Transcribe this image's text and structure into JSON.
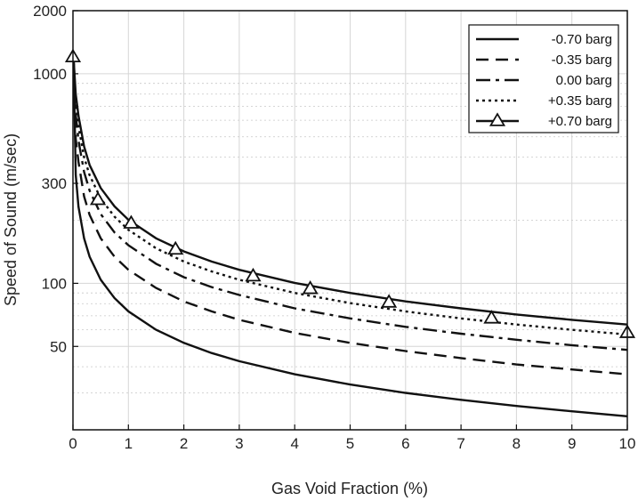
{
  "chart_data": {
    "type": "line",
    "title": "",
    "xlabel": "Gas Void Fraction (%)",
    "ylabel": "Speed of Sound (m/sec)",
    "xlim": [
      0,
      10
    ],
    "ylim": [
      20,
      2000
    ],
    "yscale": "log",
    "grid": true,
    "legend_position": "top-right",
    "x_ticks": [
      0,
      1,
      2,
      3,
      4,
      5,
      6,
      7,
      8,
      9,
      10
    ],
    "x_tick_labels": [
      "0",
      "1",
      "2",
      "3",
      "4",
      "5",
      "6",
      "7",
      "8",
      "9",
      "10"
    ],
    "y_ticks": [
      50,
      100,
      300,
      1000,
      2000
    ],
    "y_tick_labels": [
      "50",
      "100",
      "300",
      "1000",
      "2000"
    ],
    "x": [
      0.01,
      0.05,
      0.1,
      0.2,
      0.3,
      0.5,
      0.75,
      1,
      1.5,
      2,
      2.5,
      3,
      4,
      5,
      6,
      7,
      8,
      9,
      10
    ],
    "series": [
      {
        "name": "-0.70 barg",
        "style": "solid",
        "marker": "none",
        "values": [
          1200,
          330,
          232,
          164,
          134,
          104,
          85,
          73.5,
          60,
          52,
          46.5,
          42.5,
          36.8,
          32.9,
          30.0,
          27.8,
          26.0,
          24.5,
          23.2
        ]
      },
      {
        "name": "-0.35 barg",
        "style": "dashed",
        "marker": "none",
        "values": [
          1200,
          490,
          380,
          260,
          212,
          164,
          134,
          116,
          95,
          82,
          73.5,
          67,
          58,
          52,
          47.5,
          44,
          41,
          38.8,
          36.8
        ]
      },
      {
        "name": "0.00 barg",
        "style": "dashdot",
        "marker": "none",
        "values": [
          1200,
          640,
          480,
          340,
          277,
          214,
          175,
          152,
          124,
          107,
          96,
          88,
          76,
          68,
          62,
          57.5,
          53.8,
          50.7,
          48.1
        ]
      },
      {
        "name": "+0.35 barg",
        "style": "dotted",
        "marker": "none",
        "values": [
          1200,
          720,
          560,
          400,
          328,
          254,
          208,
          180,
          147,
          127,
          114,
          104,
          90,
          80.5,
          73.5,
          68,
          63.6,
          60,
          57
        ]
      },
      {
        "name": "+0.70 barg",
        "style": "solid",
        "marker": "triangle",
        "values": [
          1200,
          800,
          630,
          450,
          367,
          285,
          233,
          201,
          164,
          142,
          127,
          116,
          100.5,
          90,
          82,
          76,
          71,
          67,
          63.6
        ]
      }
    ],
    "markers": [
      {
        "x": 0.0,
        "y": 1200
      },
      {
        "x": 0.45,
        "y": 250
      },
      {
        "x": 1.05,
        "y": 193
      },
      {
        "x": 1.85,
        "y": 145
      },
      {
        "x": 3.25,
        "y": 108
      },
      {
        "x": 4.28,
        "y": 94
      },
      {
        "x": 5.7,
        "y": 81
      },
      {
        "x": 7.55,
        "y": 68
      },
      {
        "x": 10.0,
        "y": 58
      }
    ]
  }
}
